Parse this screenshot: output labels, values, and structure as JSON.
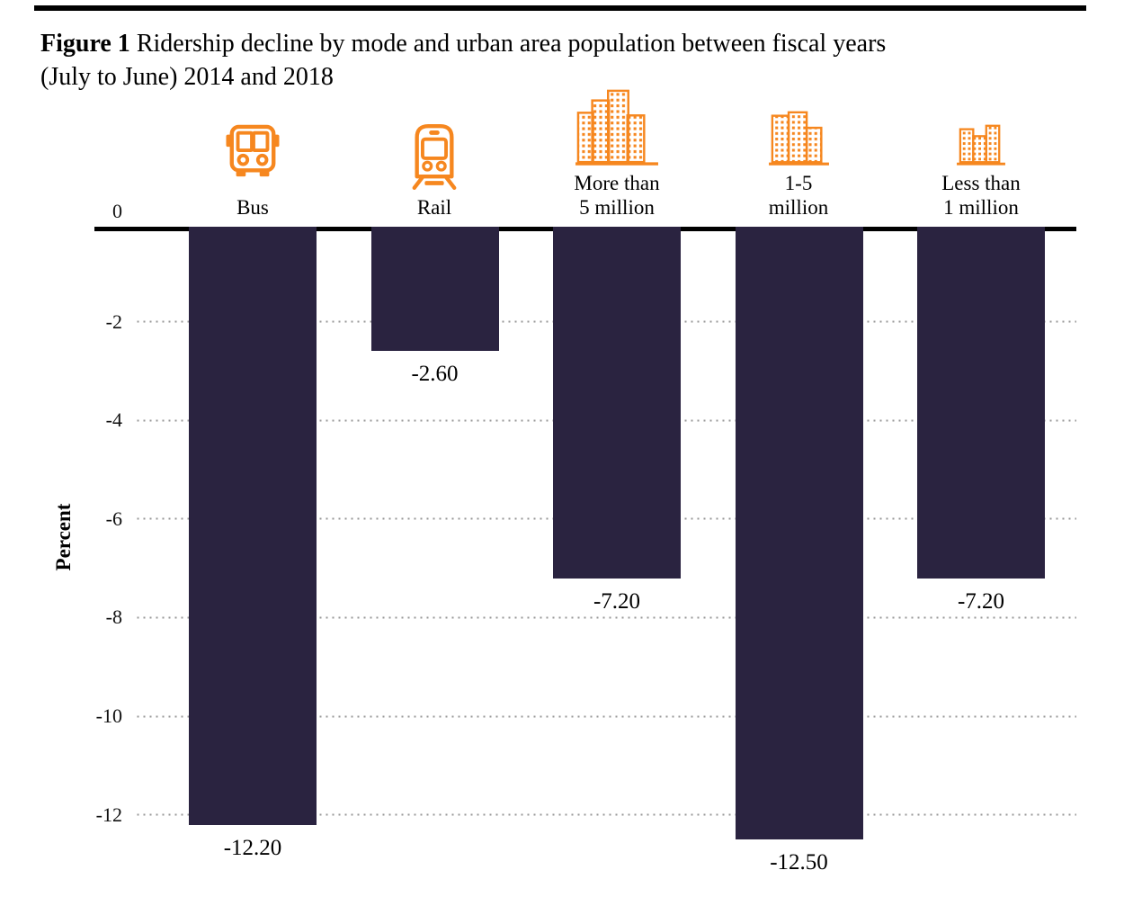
{
  "figure": {
    "title_bold": "Figure 1",
    "title_rest": " Ridership decline by mode and urban area population between fiscal years",
    "title_line2": "(July to June) 2014 and 2018"
  },
  "colors": {
    "bar": "#2A2340",
    "icon_orange": "#F6871F",
    "grid_dot": "#979797",
    "axis": "#000000",
    "text": "#000000"
  },
  "chart_data": {
    "type": "bar",
    "title": "Figure 1 Ridership decline by mode and urban area population between fiscal years (July to June) 2014 and 2018",
    "xlabel": "",
    "ylabel": "Percent",
    "ylim": [
      -13.6,
      0
    ],
    "yticks": [
      0,
      -2,
      -4,
      -6,
      -8,
      -10,
      -12
    ],
    "grid": "dotted-horizontal",
    "legend": "none",
    "bar_color": "#2A2340",
    "categories": [
      "Bus",
      "Rail",
      "More than 5 million",
      "1-5 million",
      "Less than 1 million"
    ],
    "category_labels": [
      "Bus",
      "Rail",
      "More than\n5 million",
      "1-5\nmillion",
      "Less than\n1 million"
    ],
    "values": [
      -12.2,
      -2.6,
      -7.2,
      -12.5,
      -7.2
    ],
    "data_labels": [
      "-12.20",
      "-2.60",
      "-7.20",
      "-12.50",
      "-7.20"
    ],
    "icons": [
      "bus-icon",
      "rail-icon",
      "city-large-icon",
      "city-medium-icon",
      "city-small-icon"
    ]
  }
}
